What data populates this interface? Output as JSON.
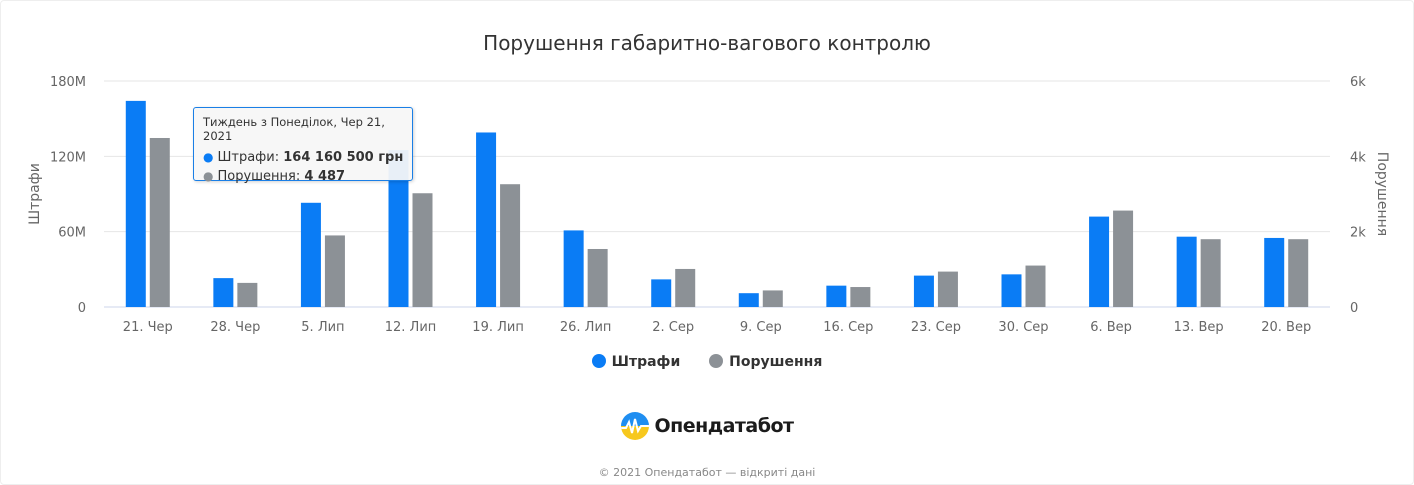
{
  "chart_data": {
    "type": "bar",
    "title": "Порушення габаритно-вагового контролю",
    "xlabel": "",
    "ylabel": "Штрафи",
    "y2label": "Порушення",
    "categories": [
      "21. Чер",
      "28. Чер",
      "5. Лип",
      "12. Лип",
      "19. Лип",
      "26. Лип",
      "2. Сер",
      "9. Сер",
      "16. Сер",
      "23. Сер",
      "30. Сер",
      "6. Вер",
      "13. Вер",
      "20. Вер"
    ],
    "ylim": [
      0,
      180000000
    ],
    "y2lim": [
      0,
      6000
    ],
    "y_ticks": [
      0,
      60000000,
      120000000,
      180000000
    ],
    "y_tick_labels": [
      "0",
      "60M",
      "120M",
      "180M"
    ],
    "y2_ticks": [
      0,
      2000,
      4000,
      6000
    ],
    "y2_tick_labels": [
      "0",
      "2k",
      "4k",
      "6k"
    ],
    "grid": true,
    "legend_position": "bottom",
    "series": [
      {
        "name": "Штрафи",
        "axis": "left",
        "color": "#0a7cf5",
        "values": [
          164160500,
          23000000,
          83000000,
          125000000,
          139000000,
          61000000,
          22000000,
          11000000,
          17000000,
          25000000,
          26000000,
          72000000,
          56000000,
          55000000
        ]
      },
      {
        "name": "Порушення",
        "axis": "right",
        "color": "#8c9196",
        "values": [
          4487,
          640,
          1900,
          3020,
          3260,
          1540,
          1010,
          440,
          530,
          940,
          1100,
          2560,
          1800,
          1800
        ]
      }
    ]
  },
  "tooltip": {
    "header": "Тиждень з Понеділок, Чер 21, 2021",
    "series1_label": "Штрафи: ",
    "series1_value": "164 160 500 грн",
    "series2_label": "Порушення: ",
    "series2_value": "4 487"
  },
  "legend": {
    "item1": "Штрафи",
    "item2": "Порушення"
  },
  "brand": {
    "name": "Опендатабот"
  },
  "footer": {
    "text": "© 2021 Опендатабот — відкриті дані"
  },
  "colors": {
    "fines": "#0a7cf5",
    "violations": "#8c9196",
    "grid": "#e6e6e6",
    "tooltip_border": "#1a7fe6"
  }
}
